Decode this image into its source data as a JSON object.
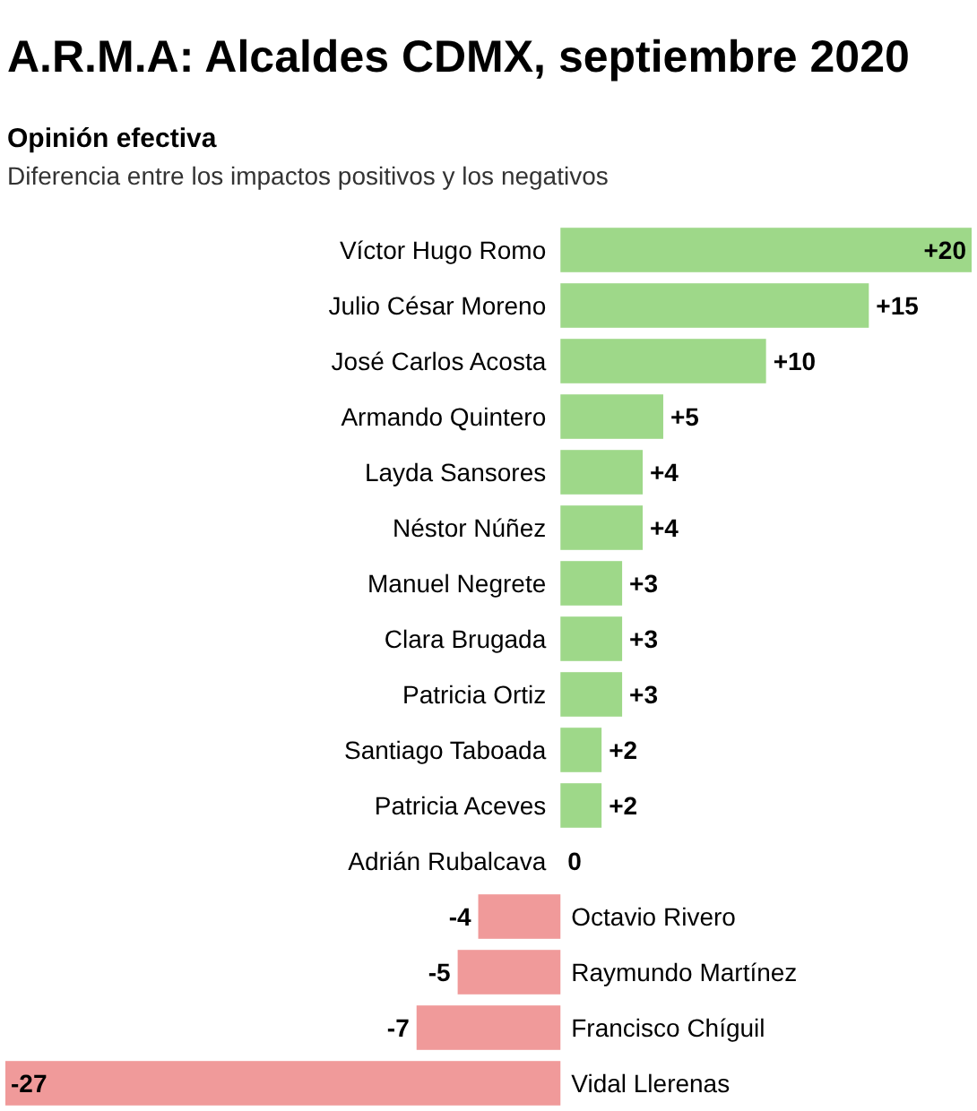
{
  "chart_data": {
    "type": "bar",
    "orientation": "horizontal",
    "title": "A.R.M.A: Alcaldes CDMX, septiembre 2020",
    "subtitle": "Opinión efectiva",
    "annotations": [
      "Diferencia entre los impactos positivos y los negativos"
    ],
    "categories": [
      "Víctor Hugo Romo",
      "Julio César Moreno",
      "José Carlos Acosta",
      "Armando Quintero",
      "Layda Sansores",
      "Néstor Núñez",
      "Manuel Negrete",
      "Clara Brugada",
      "Patricia Ortiz",
      "Santiago Taboada",
      "Patricia Aceves",
      "Adrián Rubalcava",
      "Octavio Rivero",
      "Raymundo Martínez",
      "Francisco Chíguil",
      "Vidal Llerenas"
    ],
    "values": [
      20,
      15,
      10,
      5,
      4,
      4,
      3,
      3,
      3,
      2,
      2,
      0,
      -4,
      -5,
      -7,
      -27
    ],
    "value_labels": [
      "+20",
      "+15",
      "+10",
      "+5",
      "+4",
      "+4",
      "+3",
      "+3",
      "+3",
      "+2",
      "+2",
      "0",
      "-4",
      "-5",
      "-7",
      "-27"
    ],
    "colors": [
      "#9ed889",
      "#9ed889",
      "#9ed889",
      "#9ed889",
      "#9ed889",
      "#9ed889",
      "#9ed889",
      "#9ed889",
      "#9ed889",
      "#9ed889",
      "#9ed889",
      "#9ed889",
      "#f09a9a",
      "#f09a9a",
      "#f09a9a",
      "#f09a9a"
    ]
  }
}
